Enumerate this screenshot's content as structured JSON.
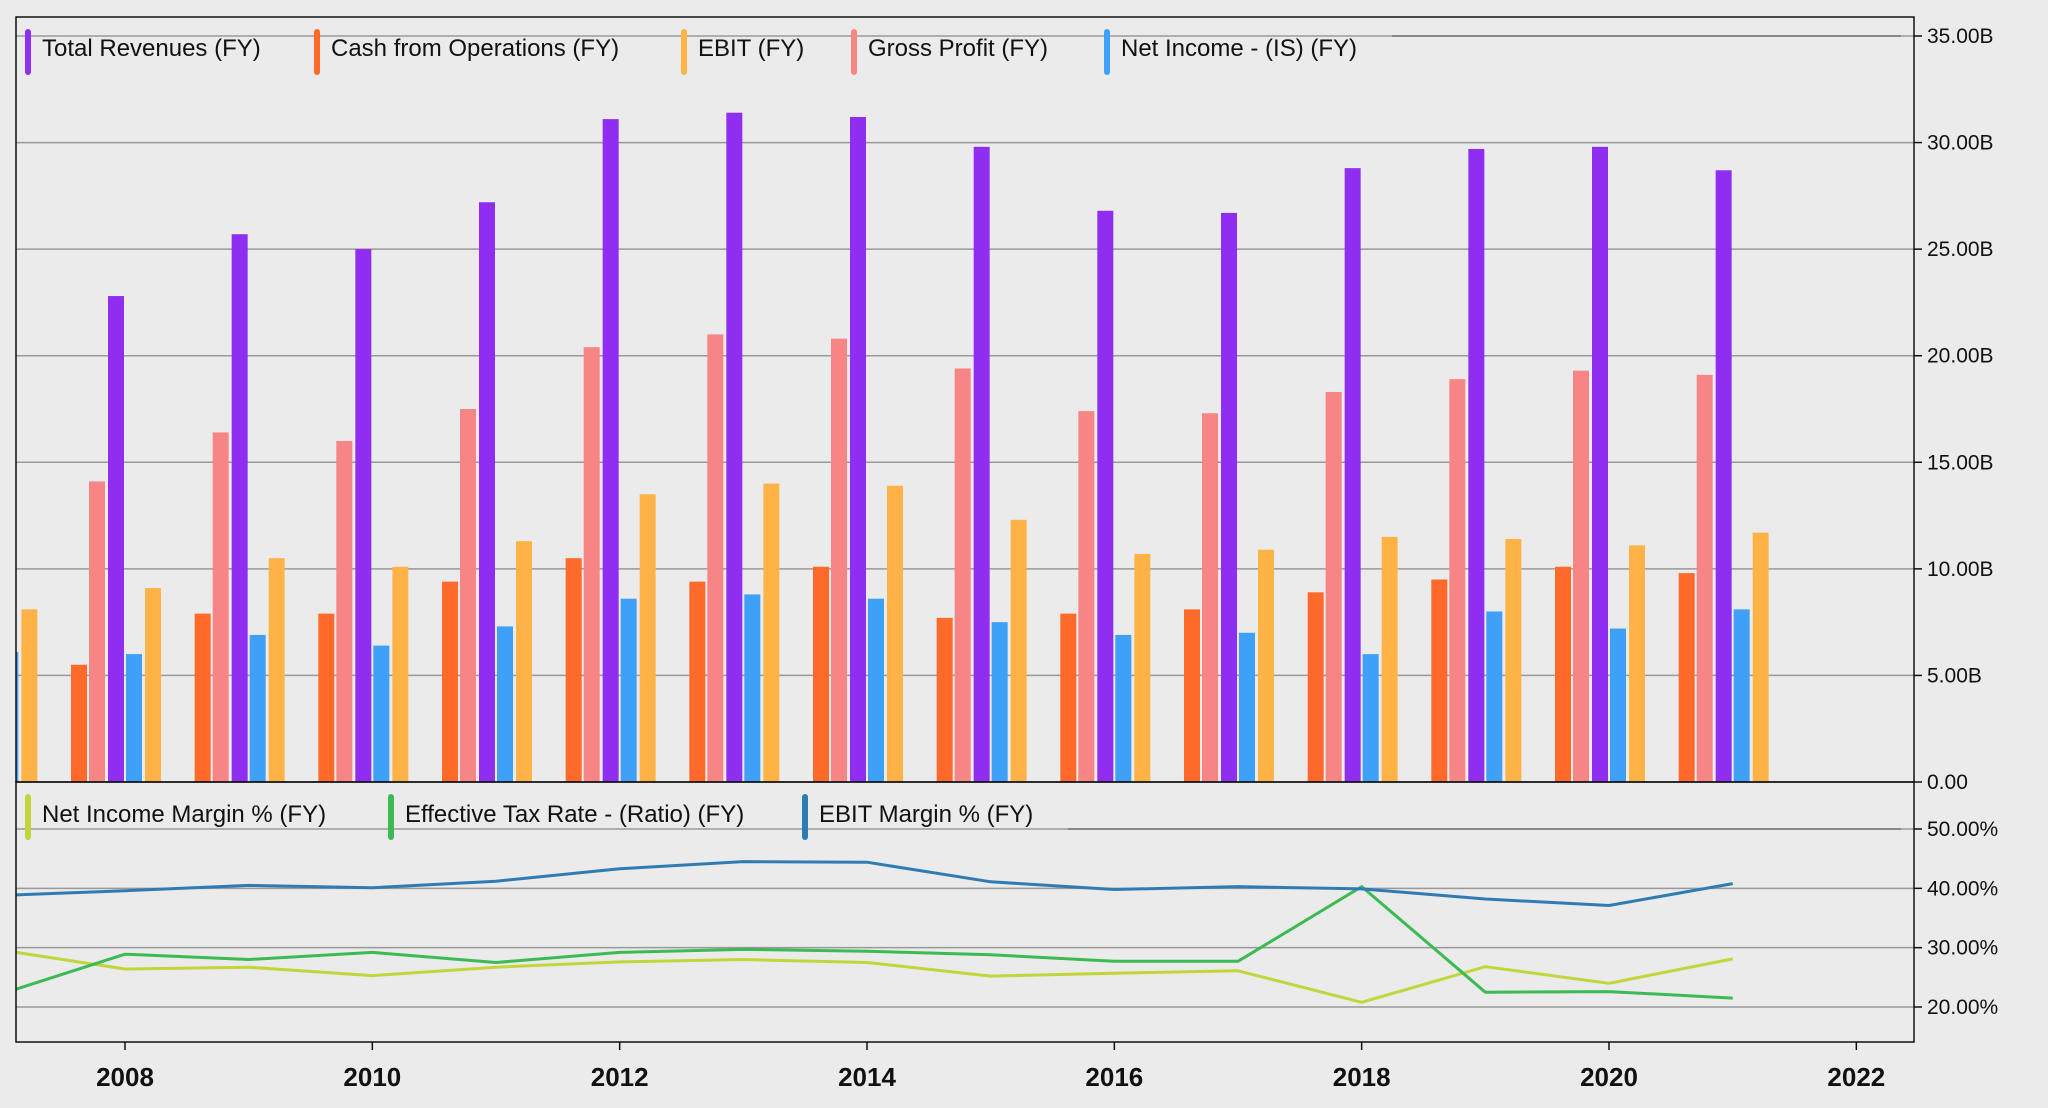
{
  "colors": {
    "background": "#ebebeb",
    "total_revenues": "#8f2ef0",
    "cash_from_operations": "#ff6a2b",
    "ebit": "#ffb347",
    "gross_profit": "#f88585",
    "net_income": "#3fa0f8",
    "net_income_margin": "#c3d53a",
    "effective_tax_rate": "#3cba54",
    "ebit_margin": "#2f7cb5"
  },
  "chart_data": [
    {
      "type": "bar",
      "years": [
        2007,
        2008,
        2009,
        2010,
        2011,
        2012,
        2013,
        2014,
        2015,
        2016,
        2017,
        2018,
        2019,
        2020,
        2021
      ],
      "y_ticks": [
        "0.00",
        "5.00B",
        "10.00B",
        "15.00B",
        "20.00B",
        "25.00B",
        "30.00B",
        "35.00B"
      ],
      "ylim": [
        0,
        35
      ],
      "series": [
        {
          "name": "Total Revenues (FY)",
          "color_key": "total_revenues",
          "values": [
            null,
            22.8,
            25.7,
            25.0,
            27.2,
            31.1,
            31.4,
            31.2,
            29.8,
            26.8,
            26.7,
            28.8,
            29.7,
            29.8,
            28.7
          ]
        },
        {
          "name": "Cash from Operations (FY)",
          "color_key": "cash_from_operations",
          "values": [
            null,
            5.5,
            7.9,
            7.9,
            9.4,
            10.5,
            9.4,
            10.1,
            7.7,
            7.9,
            8.1,
            8.9,
            9.5,
            10.1,
            9.8
          ]
        },
        {
          "name": "EBIT (FY)",
          "color_key": "ebit",
          "values": [
            8.1,
            9.1,
            10.5,
            10.1,
            11.3,
            13.5,
            14.0,
            13.9,
            12.3,
            10.7,
            10.9,
            11.5,
            11.4,
            11.1,
            11.7
          ]
        },
        {
          "name": "Gross Profit (FY)",
          "color_key": "gross_profit",
          "values": [
            null,
            14.1,
            16.4,
            16.0,
            17.5,
            20.4,
            21.0,
            20.8,
            19.4,
            17.4,
            17.3,
            18.3,
            18.9,
            19.3,
            19.1
          ]
        },
        {
          "name": "Net Income - (IS) (FY)",
          "color_key": "net_income",
          "values": [
            6.1,
            6.0,
            6.9,
            6.4,
            7.3,
            8.6,
            8.8,
            8.6,
            7.5,
            6.9,
            7.0,
            6.0,
            8.0,
            7.2,
            8.1
          ]
        }
      ]
    },
    {
      "type": "line",
      "x": [
        2007,
        2008,
        2009,
        2010,
        2011,
        2012,
        2013,
        2014,
        2015,
        2016,
        2017,
        2018,
        2019,
        2020,
        2021
      ],
      "y_ticks": [
        "20.00%",
        "30.00%",
        "40.00%",
        "50.00%"
      ],
      "ylim": [
        13,
        53
      ],
      "series": [
        {
          "name": "Net Income Margin % (FY)",
          "color_key": "net_income_margin",
          "values": [
            29.2,
            26.4,
            26.7,
            25.3,
            26.7,
            27.6,
            28.0,
            27.5,
            25.2,
            25.7,
            26.1,
            20.8,
            26.8,
            24.0,
            28.1
          ]
        },
        {
          "name": "Effective Tax Rate - (Ratio) (FY)",
          "color_key": "effective_tax_rate",
          "values": [
            23.0,
            28.9,
            28.0,
            29.2,
            27.5,
            29.2,
            29.7,
            29.4,
            28.8,
            27.7,
            27.7,
            40.3,
            22.5,
            22.6,
            21.5
          ]
        },
        {
          "name": "EBIT Margin % (FY)",
          "color_key": "ebit_margin",
          "values": [
            38.9,
            39.6,
            40.5,
            40.1,
            41.2,
            43.3,
            44.5,
            44.4,
            41.1,
            39.8,
            40.3,
            39.9,
            38.2,
            37.1,
            40.8
          ]
        }
      ]
    }
  ],
  "x_axis": {
    "ticks": [
      "2008",
      "2010",
      "2012",
      "2014",
      "2016",
      "2018",
      "2020",
      "2022"
    ]
  }
}
